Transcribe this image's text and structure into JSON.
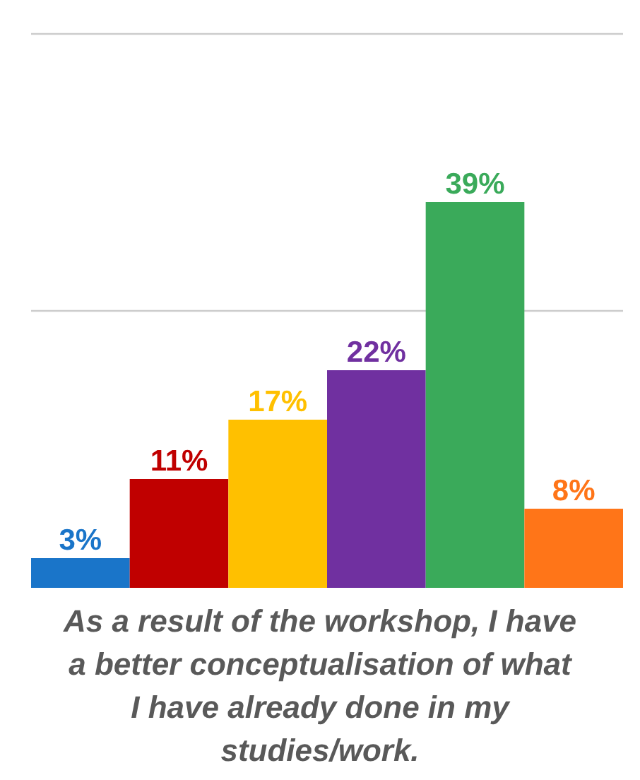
{
  "chart_data": {
    "type": "bar",
    "title": "As a result of the workshop, I have a better conceptualisation of what I have already done in my studies/work.",
    "categories": [
      null,
      null,
      null,
      null,
      null,
      null
    ],
    "values": [
      3,
      11,
      17,
      22,
      39,
      8
    ],
    "value_labels": [
      "3%",
      "11%",
      "17%",
      "22%",
      "39%",
      "8%"
    ],
    "colors": [
      "#1a75c9",
      "#c00000",
      "#ffc000",
      "#7030a0",
      "#3aaa5a",
      "#ff7518"
    ],
    "ylim": [
      0,
      56
    ],
    "ref_lines": [
      {
        "axis": "y",
        "value": 28,
        "color": "#cccccc"
      },
      {
        "axis": "y",
        "value": 56,
        "color": "#cccccc"
      }
    ]
  }
}
